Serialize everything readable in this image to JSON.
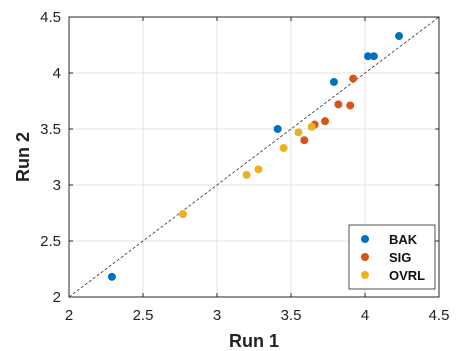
{
  "chart_data": {
    "type": "scatter",
    "xlabel": "Run 1",
    "ylabel": "Run 2",
    "xlim": [
      2,
      4.5
    ],
    "ylim": [
      2,
      4.5
    ],
    "xticks": [
      "2",
      "2.5",
      "3",
      "3.5",
      "4",
      "4.5"
    ],
    "yticks": [
      "2",
      "2.5",
      "3",
      "3.5",
      "4",
      "4.5"
    ],
    "grid": true,
    "reference_line": {
      "style": "dashed",
      "from": [
        2,
        2
      ],
      "to": [
        4.5,
        4.5
      ]
    },
    "legend": {
      "placement": "bottom-right"
    },
    "series": [
      {
        "name": "BAK",
        "color": "#0072BD",
        "points": [
          {
            "x": 2.29,
            "y": 2.18
          },
          {
            "x": 3.41,
            "y": 3.5
          },
          {
            "x": 3.79,
            "y": 3.92
          },
          {
            "x": 4.02,
            "y": 4.15
          },
          {
            "x": 4.06,
            "y": 4.15
          },
          {
            "x": 4.23,
            "y": 4.33
          }
        ]
      },
      {
        "name": "SIG",
        "color": "#D95319",
        "points": [
          {
            "x": 3.59,
            "y": 3.4
          },
          {
            "x": 3.66,
            "y": 3.54
          },
          {
            "x": 3.73,
            "y": 3.57
          },
          {
            "x": 3.82,
            "y": 3.72
          },
          {
            "x": 3.9,
            "y": 3.71
          },
          {
            "x": 3.92,
            "y": 3.95
          }
        ]
      },
      {
        "name": "OVRL",
        "color": "#EDB120",
        "points": [
          {
            "x": 2.77,
            "y": 2.74
          },
          {
            "x": 3.2,
            "y": 3.09
          },
          {
            "x": 3.28,
            "y": 3.14
          },
          {
            "x": 3.45,
            "y": 3.33
          },
          {
            "x": 3.55,
            "y": 3.47
          },
          {
            "x": 3.64,
            "y": 3.52
          }
        ]
      }
    ]
  }
}
